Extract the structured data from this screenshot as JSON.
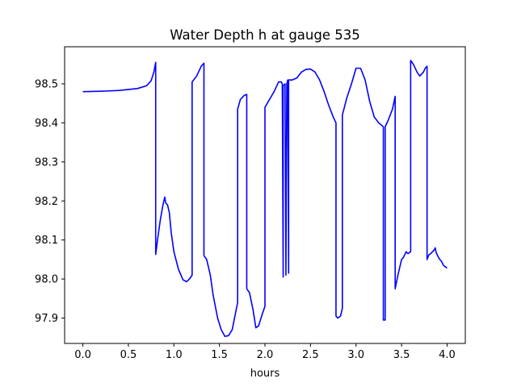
{
  "chart_data": {
    "type": "line",
    "title": "Water Depth h at gauge 535",
    "xlabel": "hours",
    "ylabel": "",
    "xlim": [
      -0.2,
      4.2
    ],
    "ylim": [
      97.835,
      98.595
    ],
    "x_ticks": [
      0.0,
      0.5,
      1.0,
      1.5,
      2.0,
      2.5,
      3.0,
      3.5,
      4.0
    ],
    "x_tick_labels": [
      "0.0",
      "0.5",
      "1.0",
      "1.5",
      "2.0",
      "2.5",
      "3.0",
      "3.5",
      "4.0"
    ],
    "y_ticks": [
      97.9,
      98.0,
      98.1,
      98.2,
      98.3,
      98.4,
      98.5
    ],
    "y_tick_labels": [
      "97.9",
      "98.0",
      "98.1",
      "98.2",
      "98.3",
      "98.4",
      "98.5"
    ],
    "grid": false,
    "legend": "none",
    "series": [
      {
        "color": "#0000ff",
        "x": [
          0.0,
          0.2,
          0.4,
          0.6,
          0.7,
          0.75,
          0.78,
          0.8,
          0.8,
          0.82,
          0.85,
          0.88,
          0.9,
          0.91,
          0.93,
          0.95,
          0.97,
          1.0,
          1.05,
          1.1,
          1.14,
          1.17,
          1.2,
          1.2,
          1.25,
          1.3,
          1.33,
          1.33,
          1.36,
          1.4,
          1.43,
          1.48,
          1.52,
          1.56,
          1.6,
          1.64,
          1.7,
          1.7,
          1.73,
          1.77,
          1.8,
          1.8,
          1.83,
          1.87,
          1.9,
          1.93,
          1.97,
          2.0,
          2.0,
          2.05,
          2.1,
          2.15,
          2.18,
          2.19,
          2.2,
          2.2,
          2.22,
          2.23,
          2.24,
          2.25,
          2.26,
          2.26,
          2.3,
          2.35,
          2.4,
          2.45,
          2.5,
          2.55,
          2.6,
          2.65,
          2.7,
          2.75,
          2.78,
          2.78,
          2.8,
          2.83,
          2.85,
          2.85,
          2.9,
          2.95,
          3.0,
          3.05,
          3.1,
          3.15,
          3.2,
          3.25,
          3.3,
          3.3,
          3.32,
          3.32,
          3.35,
          3.4,
          3.43,
          3.43,
          3.46,
          3.5,
          3.52,
          3.55,
          3.57,
          3.6,
          3.6,
          3.63,
          3.67,
          3.7,
          3.74,
          3.76,
          3.78,
          3.78,
          3.8,
          3.82,
          3.84,
          3.86,
          3.87,
          3.88,
          3.9,
          3.92,
          3.94,
          3.96,
          4.0
        ],
        "y": [
          98.48,
          98.481,
          98.483,
          98.488,
          98.495,
          98.508,
          98.53,
          98.555,
          98.063,
          98.1,
          98.15,
          98.19,
          98.21,
          98.195,
          98.19,
          98.17,
          98.12,
          98.07,
          98.025,
          97.998,
          97.993,
          98.0,
          98.01,
          98.505,
          98.52,
          98.545,
          98.553,
          98.06,
          98.05,
          98.01,
          97.96,
          97.9,
          97.87,
          97.853,
          97.855,
          97.87,
          97.94,
          98.435,
          98.46,
          98.47,
          98.473,
          97.975,
          97.965,
          97.92,
          97.875,
          97.88,
          97.91,
          97.93,
          98.44,
          98.46,
          98.48,
          98.505,
          98.505,
          98.5,
          98.005,
          98.495,
          98.5,
          98.01,
          98.5,
          98.51,
          98.015,
          98.51,
          98.51,
          98.515,
          98.53,
          98.537,
          98.538,
          98.53,
          98.51,
          98.48,
          98.445,
          98.415,
          98.4,
          97.905,
          97.9,
          97.905,
          97.925,
          98.42,
          98.465,
          98.5,
          98.54,
          98.54,
          98.51,
          98.455,
          98.415,
          98.4,
          98.39,
          97.895,
          97.895,
          98.39,
          98.405,
          98.435,
          98.468,
          97.975,
          98.01,
          98.05,
          98.055,
          98.07,
          98.065,
          98.07,
          98.56,
          98.55,
          98.53,
          98.52,
          98.53,
          98.54,
          98.545,
          98.05,
          98.062,
          98.065,
          98.07,
          98.075,
          98.08,
          98.068,
          98.058,
          98.05,
          98.045,
          98.035,
          98.028
        ]
      }
    ]
  }
}
